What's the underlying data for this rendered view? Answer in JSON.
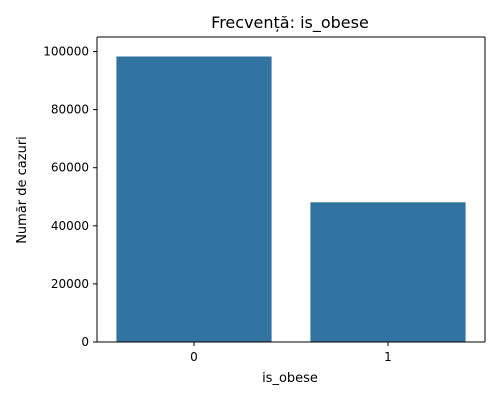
{
  "chart_data": {
    "type": "bar",
    "title": "Frecvență: is_obese",
    "xlabel": "is_obese",
    "ylabel": "Număr de cazuri",
    "categories": [
      "0",
      "1"
    ],
    "values": [
      98300,
      48100
    ],
    "ylim": [
      0,
      105000
    ],
    "yticks": [
      0,
      20000,
      40000,
      60000,
      80000,
      100000
    ],
    "yticks_labels": [
      "0",
      "20000",
      "40000",
      "60000",
      "80000",
      "100000"
    ],
    "grid": false,
    "legend": "none",
    "bar_color": "#3274a1"
  }
}
